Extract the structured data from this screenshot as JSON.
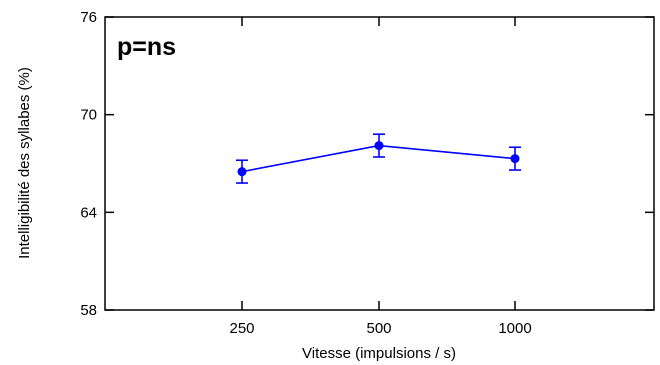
{
  "chart_data": {
    "type": "line",
    "title": "",
    "annotation": "p=ns",
    "xlabel": "Vitesse (impulsions / s)",
    "ylabel": "Intelligibilité des syllabes (%)",
    "categories": [
      "250",
      "500",
      "1000"
    ],
    "y_ticks": [
      "58",
      "64",
      "70",
      "76"
    ],
    "ylim": [
      58,
      76
    ],
    "grid": false,
    "series": [
      {
        "values": [
          66.5,
          68.1,
          67.3
        ],
        "error_low": [
          65.8,
          67.4,
          66.6
        ],
        "error_high": [
          67.2,
          68.8,
          68.0
        ],
        "color": "#0000ff"
      }
    ]
  }
}
